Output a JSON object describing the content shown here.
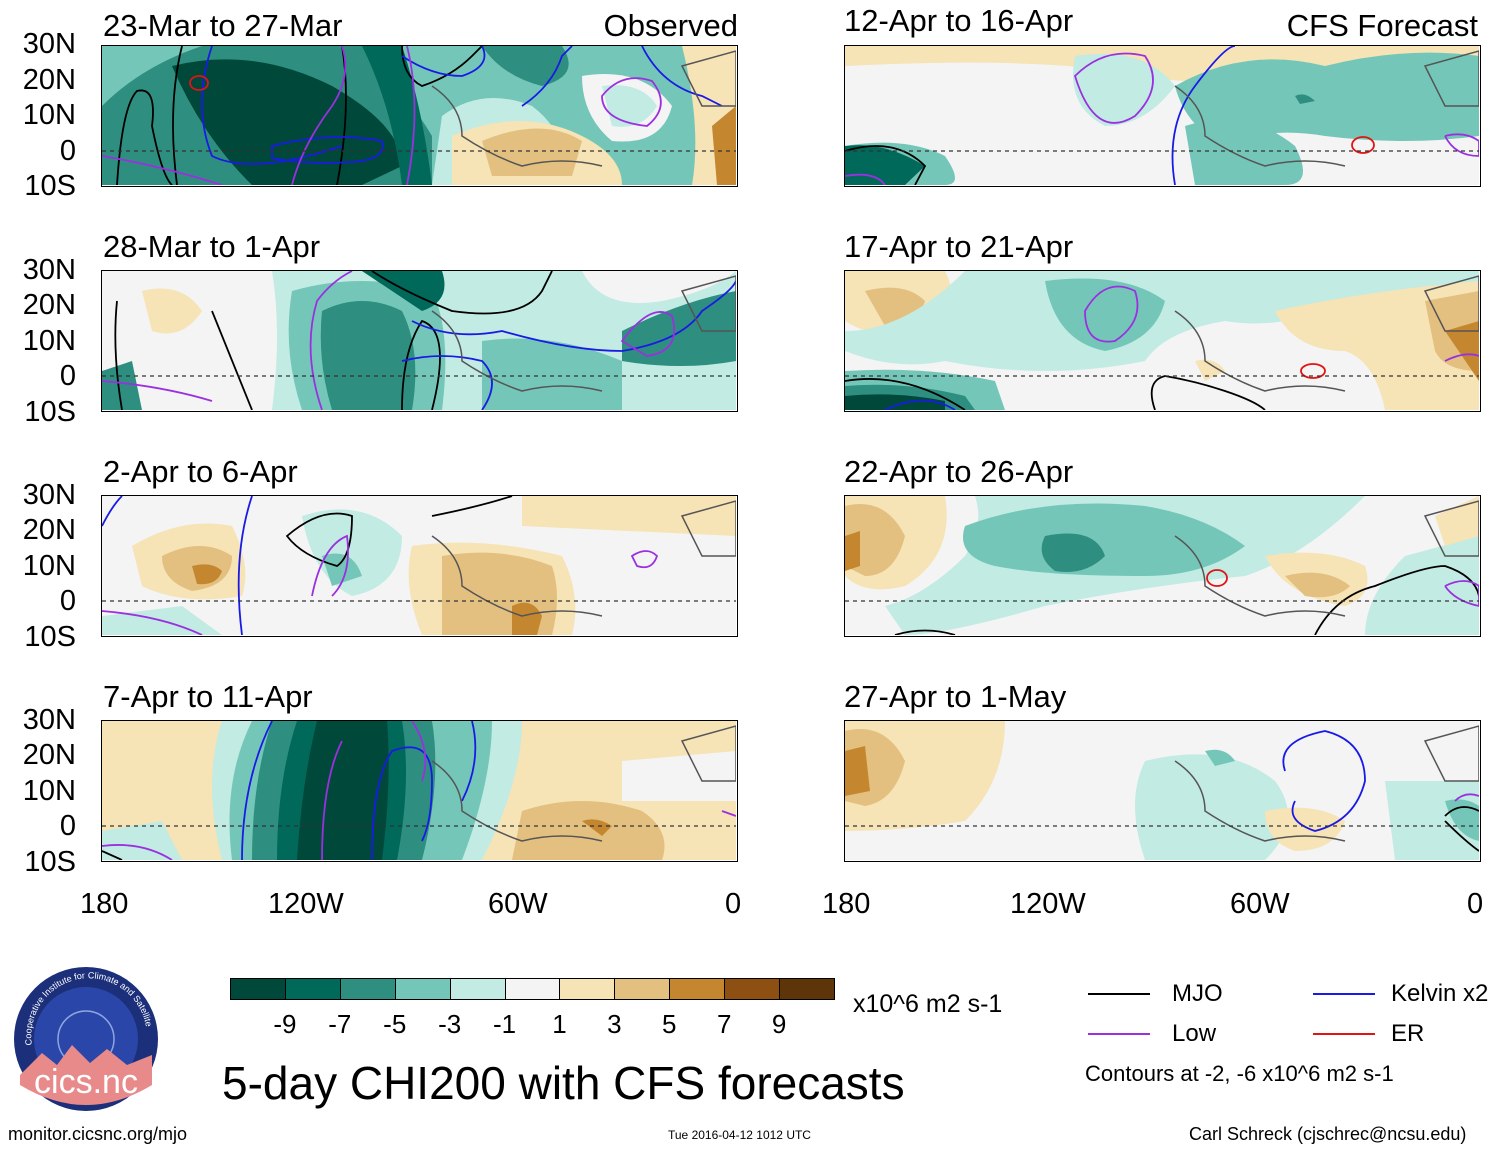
{
  "layout": {
    "columns": [
      {
        "header": "Observed",
        "periods": [
          "23-Mar to 27-Mar",
          "28-Mar to 1-Apr",
          "2-Apr to 6-Apr",
          "7-Apr to 11-Apr"
        ]
      },
      {
        "header": "CFS Forecast",
        "periods": [
          "12-Apr to 16-Apr",
          "17-Apr to 21-Apr",
          "22-Apr to 26-Apr",
          "27-Apr to 1-May"
        ]
      }
    ],
    "lat_labels": [
      "30N",
      "20N",
      "10N",
      "0",
      "10S"
    ],
    "lon_labels": [
      "180",
      "120W",
      "60W",
      "0"
    ]
  },
  "colorbar": {
    "colors": [
      "#00483a",
      "#00695a",
      "#2e8e80",
      "#74c7b8",
      "#c2ebe3",
      "#f4f4f4",
      "#f6e3b6",
      "#e3c07f",
      "#c4872f",
      "#8d5012",
      "#5e3409"
    ],
    "labels": [
      "-9",
      "-7",
      "-5",
      "-3",
      "-1",
      "1",
      "3",
      "5",
      "7",
      "9"
    ],
    "units": "x10^6 m2 s-1"
  },
  "title": "5-day CHI200 with CFS forecasts",
  "legend": {
    "items": [
      {
        "label": "MJO",
        "color": "#000000"
      },
      {
        "label": "Kelvin x2",
        "color": "#1a1ae6"
      },
      {
        "label": "Low",
        "color": "#9b30e0"
      },
      {
        "label": "ER",
        "color": "#e01414"
      }
    ],
    "contours_note": "Contours at -2, -6 x10^6 m2 s-1"
  },
  "logo": {
    "text": "cics.nc",
    "ring_text": "Cooperative Institute for Climate and Satellites"
  },
  "footer": {
    "left": "monitor.cicsnc.org/mjo",
    "center": "Tue 2016-04-12 1012 UTC",
    "right": "Carl Schreck (cjschrec@ncsu.edu)"
  }
}
